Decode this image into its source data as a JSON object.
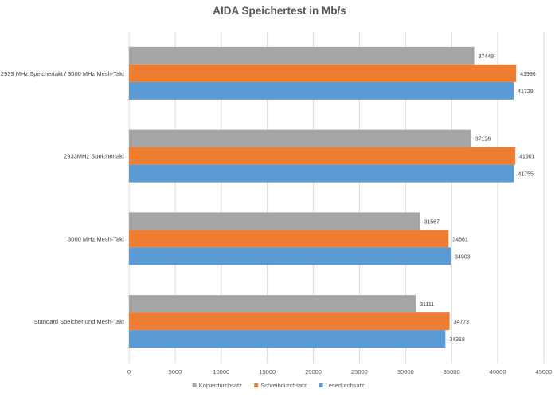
{
  "chart_data": {
    "type": "bar",
    "orientation": "horizontal",
    "title": "AIDA Speichertest in Mb/s",
    "xlabel": "",
    "ylabel": "",
    "xlim": [
      0,
      45000
    ],
    "xticks": [
      0,
      5000,
      10000,
      15000,
      20000,
      25000,
      30000,
      35000,
      40000,
      45000
    ],
    "grid": true,
    "legend_position": "bottom",
    "categories": [
      "2933 MHz Speichertakt / 3000 MHz Mesh-Takt",
      "2933MHz Speichertakt",
      "3000 MHz Mesh-Takt",
      "Standard Speicher und Mesh-Takt"
    ],
    "series": [
      {
        "name": "Kopierdurchsatz",
        "color": "#a5a5a5",
        "values": [
          37448,
          37126,
          31567,
          31111
        ]
      },
      {
        "name": "Schreibdurchsatz",
        "color": "#ed7d31",
        "values": [
          41996,
          41901,
          34661,
          34773
        ]
      },
      {
        "name": "Lesedurchsatz",
        "color": "#5b9bd5",
        "values": [
          41729,
          41755,
          34903,
          34318
        ]
      }
    ]
  }
}
